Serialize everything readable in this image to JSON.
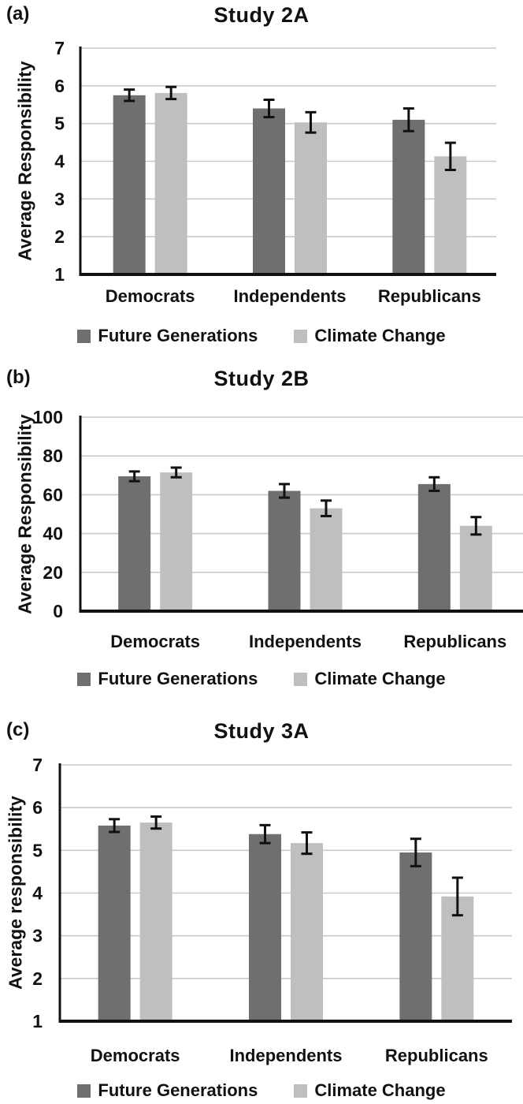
{
  "colors": {
    "future_generations": "#6f6f6f",
    "climate_change": "#bfbfbf",
    "gridline": "#c9c9c9",
    "axis": "#111111",
    "error_bar": "#111111",
    "text": "#111111"
  },
  "chart_data": [
    {
      "type": "bar",
      "panel_letter": "(a)",
      "title": "Study 2A",
      "ylabel": "Average Responsibility",
      "xlabel": "",
      "categories": [
        "Democrats",
        "Independents",
        "Republicans"
      ],
      "series": [
        {
          "name": "Future Generations",
          "values": [
            5.75,
            5.4,
            5.1
          ],
          "errors": [
            0.15,
            0.23,
            0.3
          ]
        },
        {
          "name": "Climate Change",
          "values": [
            5.81,
            5.03,
            4.13
          ],
          "errors": [
            0.16,
            0.27,
            0.36
          ]
        }
      ],
      "ylim": [
        1,
        7
      ],
      "yticks": [
        1,
        2,
        3,
        4,
        5,
        6,
        7
      ],
      "grid": true,
      "error_bars": true,
      "legend_position": "bottom"
    },
    {
      "type": "bar",
      "panel_letter": "(b)",
      "title": "Study 2B",
      "ylabel": "Average Responsibility",
      "xlabel": "",
      "categories": [
        "Democrats",
        "Independents",
        "Republicans"
      ],
      "series": [
        {
          "name": "Future Generations",
          "values": [
            69.5,
            62,
            65.5
          ],
          "errors": [
            2.5,
            3.5,
            3.5
          ]
        },
        {
          "name": "Climate Change",
          "values": [
            71.5,
            53,
            44
          ],
          "errors": [
            2.5,
            4,
            4.5
          ]
        }
      ],
      "ylim": [
        0,
        100
      ],
      "yticks": [
        0,
        20,
        40,
        60,
        80,
        100
      ],
      "grid": true,
      "error_bars": true,
      "legend_position": "bottom"
    },
    {
      "type": "bar",
      "panel_letter": "(c)",
      "title": "Study 3A",
      "ylabel": "Average responsibility",
      "xlabel": "",
      "categories": [
        "Democrats",
        "Independents",
        "Republicans"
      ],
      "series": [
        {
          "name": "Future Generations",
          "values": [
            5.58,
            5.38,
            4.95
          ],
          "errors": [
            0.15,
            0.21,
            0.32
          ]
        },
        {
          "name": "Climate Change",
          "values": [
            5.65,
            5.17,
            3.92
          ],
          "errors": [
            0.14,
            0.25,
            0.44
          ]
        }
      ],
      "ylim": [
        1,
        7
      ],
      "yticks": [
        1,
        2,
        3,
        4,
        5,
        6,
        7
      ],
      "grid": true,
      "error_bars": true,
      "legend_position": "bottom"
    }
  ]
}
